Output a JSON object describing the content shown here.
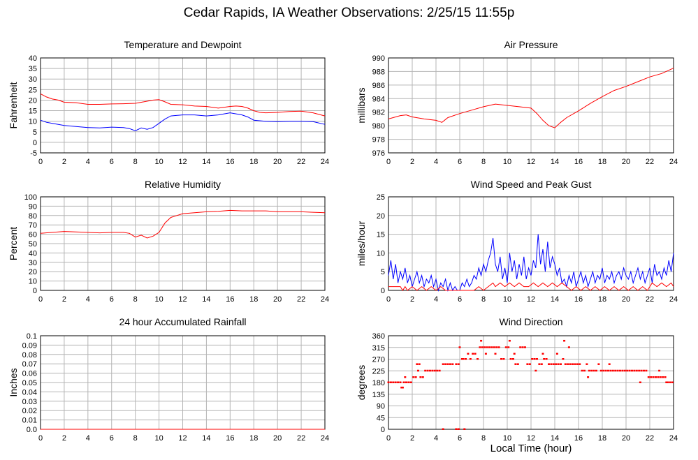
{
  "page": {
    "title": "Cedar Rapids, IA Weather Observations: 2/25/15 11:55p",
    "x_axis_title": "Local Time (hour)"
  },
  "colors": {
    "red": "#ff0000",
    "blue": "#0000ff",
    "grid": "#b4b4b4",
    "frame": "#000000"
  },
  "chart_data": [
    {
      "id": "temp",
      "type": "line",
      "title": "Temperature and Dewpoint",
      "ylabel": "Fahrenheit",
      "xlabel": "",
      "xlim": [
        0,
        24
      ],
      "ylim": [
        -5,
        40
      ],
      "xticks": [
        0,
        2,
        4,
        6,
        8,
        10,
        12,
        14,
        16,
        18,
        20,
        22,
        24
      ],
      "yticks": [
        -5,
        0,
        5,
        10,
        15,
        20,
        25,
        30,
        35,
        40
      ],
      "grid": true,
      "series": [
        {
          "color": "#ff0000",
          "x": [
            0,
            0.5,
            1,
            1.5,
            2,
            3,
            4,
            5,
            6,
            7,
            8,
            9,
            9.5,
            10,
            10.5,
            11,
            12,
            13,
            14,
            15,
            16,
            16.5,
            17,
            17.5,
            18,
            18.5,
            19,
            20,
            21,
            22,
            23,
            24
          ],
          "y": [
            23,
            21.5,
            20.5,
            20,
            19,
            18.8,
            18,
            18,
            18.2,
            18.3,
            18.5,
            19.5,
            20,
            20.2,
            19.2,
            18,
            17.8,
            17.2,
            17,
            16.2,
            17,
            17.2,
            17,
            16.2,
            15,
            14.2,
            14,
            14.2,
            14.6,
            14.8,
            14,
            12.5
          ]
        },
        {
          "color": "#0000ff",
          "x": [
            0,
            0.5,
            1,
            2,
            3,
            4,
            5,
            6,
            7,
            7.5,
            8,
            8.5,
            9,
            9.5,
            10,
            10.5,
            11,
            12,
            13,
            14,
            15,
            16,
            16.5,
            17,
            17.5,
            18,
            19,
            20,
            21,
            22,
            23,
            24
          ],
          "y": [
            10.5,
            9.5,
            9,
            8,
            7.5,
            7,
            6.8,
            7.2,
            7,
            6.5,
            5.5,
            6.8,
            6.2,
            7,
            9,
            11,
            12.5,
            13,
            13,
            12.5,
            13,
            14,
            13.5,
            13,
            12,
            10.5,
            10,
            9.8,
            10,
            10,
            9.8,
            8.5
          ]
        }
      ]
    },
    {
      "id": "pressure",
      "type": "line",
      "title": "Air Pressure",
      "ylabel": "millibars",
      "xlabel": "",
      "xlim": [
        0,
        24
      ],
      "ylim": [
        976,
        990
      ],
      "xticks": [
        0,
        2,
        4,
        6,
        8,
        10,
        12,
        14,
        16,
        18,
        20,
        22,
        24
      ],
      "yticks": [
        976,
        978,
        980,
        982,
        984,
        986,
        988,
        990
      ],
      "grid": true,
      "series": [
        {
          "color": "#ff0000",
          "x": [
            0,
            1,
            1.5,
            2,
            3,
            4,
            4.5,
            5,
            6,
            7,
            8,
            9,
            10,
            11,
            12,
            12.5,
            13,
            13.5,
            14,
            14.5,
            15,
            16,
            17,
            18,
            19,
            20,
            21,
            22,
            23,
            24
          ],
          "y": [
            981,
            981.5,
            981.6,
            981.3,
            981,
            980.8,
            980.5,
            981.2,
            981.8,
            982.3,
            982.8,
            983.2,
            983.0,
            982.8,
            982.6,
            981.8,
            980.8,
            980,
            979.7,
            980.5,
            981.2,
            982.2,
            983.3,
            984.3,
            985.2,
            985.8,
            986.5,
            987.2,
            987.7,
            988.5
          ]
        }
      ]
    },
    {
      "id": "humidity",
      "type": "line",
      "title": "Relative Humidity",
      "ylabel": "Percent",
      "xlabel": "",
      "xlim": [
        0,
        24
      ],
      "ylim": [
        0,
        100
      ],
      "xticks": [
        0,
        2,
        4,
        6,
        8,
        10,
        12,
        14,
        16,
        18,
        20,
        22,
        24
      ],
      "yticks": [
        0,
        10,
        20,
        30,
        40,
        50,
        60,
        70,
        80,
        90,
        100
      ],
      "grid": true,
      "series": [
        {
          "color": "#ff0000",
          "x": [
            0,
            1,
            2,
            3,
            4,
            5,
            6,
            7,
            7.5,
            8,
            8.5,
            9,
            9.5,
            10,
            10.5,
            11,
            11.5,
            12,
            13,
            14,
            15,
            16,
            17,
            18,
            19,
            20,
            21,
            22,
            23,
            24
          ],
          "y": [
            61,
            62,
            63,
            62.5,
            62,
            61.5,
            62,
            62,
            61,
            57,
            59,
            56,
            58,
            62,
            72,
            78,
            80,
            82,
            83,
            84,
            84.5,
            85.5,
            85,
            85,
            85,
            84,
            84,
            84,
            83.5,
            83
          ]
        }
      ]
    },
    {
      "id": "wind",
      "type": "line",
      "title": "Wind Speed and Peak Gust",
      "ylabel": "miles/hour",
      "xlabel": "",
      "xlim": [
        0,
        24
      ],
      "ylim": [
        0,
        25
      ],
      "xticks": [
        0,
        2,
        4,
        6,
        8,
        10,
        12,
        14,
        16,
        18,
        20,
        22,
        24
      ],
      "yticks": [
        0,
        5,
        10,
        15,
        20,
        25
      ],
      "grid": true,
      "series": [
        {
          "color": "#0000ff",
          "x": [
            0,
            0.2,
            0.4,
            0.6,
            0.8,
            1,
            1.2,
            1.4,
            1.6,
            1.8,
            2,
            2.2,
            2.4,
            2.6,
            2.8,
            3,
            3.2,
            3.4,
            3.6,
            3.8,
            4,
            4.2,
            4.4,
            4.6,
            4.8,
            5,
            5.2,
            5.4,
            5.6,
            5.8,
            6,
            6.2,
            6.4,
            6.6,
            6.8,
            7,
            7.2,
            7.4,
            7.6,
            7.8,
            8,
            8.2,
            8.4,
            8.6,
            8.8,
            9,
            9.2,
            9.4,
            9.6,
            9.8,
            10,
            10.2,
            10.4,
            10.6,
            10.8,
            11,
            11.2,
            11.4,
            11.6,
            11.8,
            12,
            12.2,
            12.4,
            12.6,
            12.8,
            13,
            13.2,
            13.4,
            13.6,
            13.8,
            14,
            14.2,
            14.4,
            14.6,
            14.8,
            15,
            15.2,
            15.4,
            15.6,
            15.8,
            16,
            16.2,
            16.4,
            16.6,
            16.8,
            17,
            17.2,
            17.4,
            17.6,
            17.8,
            18,
            18.2,
            18.4,
            18.6,
            18.8,
            19,
            19.2,
            19.4,
            19.6,
            19.8,
            20,
            20.2,
            20.4,
            20.6,
            20.8,
            21,
            21.2,
            21.4,
            21.6,
            21.8,
            22,
            22.2,
            22.4,
            22.6,
            22.8,
            23,
            23.2,
            23.4,
            23.6,
            23.8,
            24
          ],
          "y": [
            4,
            8,
            3,
            7,
            2,
            5,
            3,
            6,
            2,
            4,
            1,
            3,
            5,
            2,
            4,
            1,
            3,
            2,
            4,
            1,
            3,
            0,
            2,
            1,
            3,
            0,
            2,
            0,
            1,
            0,
            0,
            2,
            1,
            3,
            1,
            2,
            4,
            3,
            6,
            4,
            7,
            5,
            8,
            10,
            14,
            7,
            5,
            9,
            3,
            6,
            2,
            10,
            5,
            8,
            3,
            7,
            4,
            9,
            3,
            6,
            4,
            8,
            6,
            15,
            7,
            11,
            5,
            13,
            6,
            9,
            7,
            4,
            6,
            2,
            3,
            1,
            4,
            2,
            5,
            1,
            3,
            5,
            2,
            4,
            1,
            3,
            5,
            2,
            4,
            3,
            6,
            2,
            4,
            3,
            5,
            2,
            4,
            5,
            3,
            6,
            4,
            3,
            5,
            2,
            4,
            6,
            3,
            5,
            2,
            4,
            6,
            2,
            7,
            4,
            5,
            3,
            6,
            4,
            8,
            5,
            10
          ]
        },
        {
          "color": "#ff0000",
          "x": [
            0,
            0.2,
            0.4,
            1,
            1.2,
            1.4,
            1.6,
            2,
            2.4,
            2.8,
            3.2,
            3.6,
            4,
            4.4,
            4.8,
            5.2,
            5.6,
            6,
            6.4,
            6.8,
            7.2,
            7.6,
            8,
            8.4,
            8.8,
            9,
            9.4,
            9.8,
            10.2,
            10.6,
            11,
            11.4,
            11.8,
            12.2,
            12.6,
            13,
            13.4,
            13.8,
            14.2,
            14.6,
            15,
            15.4,
            15.8,
            16.2,
            16.6,
            17,
            17.4,
            17.8,
            18.2,
            18.6,
            19,
            19.4,
            19.8,
            20.2,
            20.6,
            21,
            21.4,
            21.8,
            22.2,
            22.6,
            23,
            23.4,
            23.8,
            24
          ],
          "y": [
            1,
            1,
            1,
            1,
            0,
            1,
            0,
            1,
            0,
            1,
            0,
            1,
            0,
            1,
            0,
            0,
            0,
            0,
            0,
            0,
            0,
            1,
            0,
            1,
            2,
            1,
            2,
            1,
            2,
            1,
            2,
            1,
            1,
            2,
            1,
            2,
            1,
            2,
            1,
            2,
            1,
            0,
            1,
            0,
            1,
            0,
            1,
            0,
            1,
            0,
            1,
            0,
            1,
            0,
            1,
            0,
            1,
            0,
            2,
            1,
            2,
            1,
            2,
            1
          ]
        }
      ]
    },
    {
      "id": "rain",
      "type": "line",
      "title": "24 hour Accumulated Rainfall",
      "ylabel": "Inches",
      "xlabel": "",
      "xlim": [
        0,
        24
      ],
      "ylim": [
        0,
        0.1
      ],
      "xticks": [
        0,
        2,
        4,
        6,
        8,
        10,
        12,
        14,
        16,
        18,
        20,
        22,
        24
      ],
      "yticks": [
        "0.0",
        "0.01",
        "0.02",
        "0.03",
        "0.04",
        "0.05",
        "0.06",
        "0.07",
        "0.08",
        "0.09",
        "0.1"
      ],
      "grid": true,
      "series": [
        {
          "color": "#ff0000",
          "x": [
            0,
            24
          ],
          "y": [
            0,
            0
          ]
        }
      ]
    },
    {
      "id": "direction",
      "type": "scatter",
      "title": "Wind Direction",
      "ylabel": "degrees",
      "xlabel": "Local Time (hour)",
      "xlim": [
        0,
        24
      ],
      "ylim": [
        0,
        360
      ],
      "xticks": [
        0,
        2,
        4,
        6,
        8,
        10,
        12,
        14,
        16,
        18,
        20,
        22,
        24
      ],
      "yticks": [
        0,
        45,
        90,
        135,
        180,
        225,
        270,
        315,
        360
      ],
      "grid": true,
      "series": [
        {
          "color": "#ff0000",
          "x": [
            0,
            0.2,
            0.4,
            0.6,
            0.8,
            1,
            1.1,
            1.3,
            1.5,
            1.7,
            1.9,
            2.1,
            2.3,
            2.5,
            2.7,
            2.9,
            3.1,
            3.3,
            3.5,
            3.7,
            3.9,
            4.1,
            4.3,
            4.6,
            4.8,
            5.0,
            5.2,
            5.4,
            5.7,
            5.9,
            6.0,
            6.2,
            6.3,
            6.5,
            6.7,
            6.9,
            7.1,
            7.3,
            7.5,
            7.7,
            7.9,
            8.1,
            8.3,
            8.5,
            8.7,
            8.9,
            9.1,
            9.3,
            9.5,
            9.7,
            9.9,
            10.1,
            10.3,
            10.5,
            10.7,
            10.9,
            11.1,
            11.3,
            11.5,
            11.7,
            11.9,
            12.1,
            12.3,
            12.5,
            12.7,
            12.9,
            13.1,
            13.3,
            13.5,
            13.7,
            13.9,
            14.1,
            14.3,
            14.5,
            14.7,
            14.9,
            15.1,
            15.3,
            15.5,
            15.7,
            15.9,
            16.1,
            16.3,
            16.5,
            16.7,
            16.9,
            17.1,
            17.3,
            17.5,
            17.7,
            17.9,
            18.1,
            18.3,
            18.5,
            18.7,
            18.9,
            19.1,
            19.3,
            19.5,
            19.7,
            19.9,
            20.1,
            20.3,
            20.5,
            20.7,
            20.9,
            21.1,
            21.3,
            21.5,
            21.7,
            21.9,
            22.1,
            22.3,
            22.5,
            22.7,
            22.9,
            23.1,
            23.3,
            23.5,
            23.7,
            23.9,
            4.6,
            5.7,
            5.9,
            6.4,
            1.2,
            1.4,
            2.4,
            2.6,
            7.8,
            8.2,
            9.0,
            10.2,
            10.6,
            12.4,
            13.0,
            14.2,
            14.8,
            15.2,
            16.8,
            18.6,
            21.2,
            22.8,
            23.4
          ],
          "y": [
            180,
            180,
            180,
            180,
            180,
            180,
            160,
            180,
            180,
            180,
            180,
            200,
            200,
            225,
            200,
            200,
            225,
            225,
            225,
            225,
            225,
            225,
            225,
            250,
            250,
            250,
            250,
            250,
            250,
            250,
            315,
            270,
            270,
            270,
            290,
            270,
            290,
            290,
            270,
            315,
            315,
            315,
            315,
            315,
            315,
            315,
            315,
            315,
            270,
            270,
            315,
            315,
            270,
            270,
            250,
            250,
            315,
            315,
            315,
            250,
            250,
            270,
            270,
            270,
            250,
            250,
            270,
            270,
            250,
            250,
            250,
            250,
            250,
            250,
            270,
            250,
            250,
            250,
            250,
            250,
            250,
            250,
            225,
            225,
            250,
            225,
            225,
            225,
            225,
            250,
            225,
            225,
            225,
            225,
            225,
            225,
            225,
            225,
            225,
            225,
            225,
            225,
            225,
            225,
            225,
            225,
            225,
            225,
            225,
            225,
            200,
            200,
            200,
            200,
            200,
            200,
            200,
            200,
            180,
            180,
            180,
            0,
            0,
            0,
            0,
            160,
            200,
            250,
            250,
            340,
            290,
            290,
            340,
            290,
            225,
            290,
            290,
            340,
            315,
            200,
            250,
            180,
            225,
            180
          ]
        }
      ]
    }
  ]
}
